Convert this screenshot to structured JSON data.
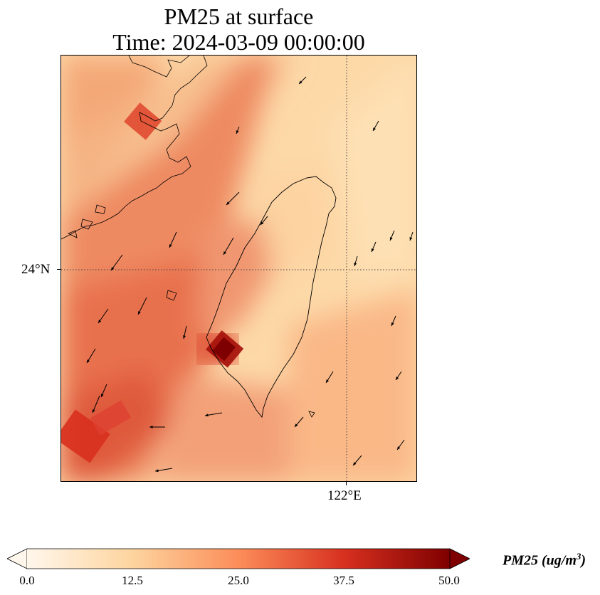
{
  "title": {
    "line1": "PM25 at surface",
    "line2": "Time: 2024-03-09 00:00:00"
  },
  "map": {
    "gridlines": {
      "latitude_label": "24°N",
      "longitude_label": "122°E"
    },
    "coastline_color": "#000000",
    "vector_color": "#000000"
  },
  "colorbar": {
    "label_prefix": "PM25 (ug/m",
    "label_superscript": "3",
    "label_suffix": ")",
    "colormap": "OrRd",
    "vmin": 0.0,
    "vmax": 50.0,
    "extend": "both",
    "ticks": [
      "0.0",
      "12.5",
      "25.0",
      "37.5",
      "50.0"
    ],
    "colors": [
      "#fff7ec",
      "#fdd49e",
      "#fc8d59",
      "#d7301f",
      "#7f0000"
    ]
  }
}
